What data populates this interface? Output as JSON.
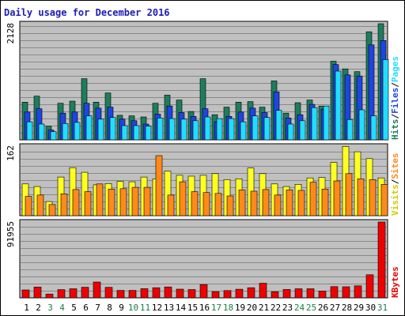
{
  "chart_data": {
    "type": "bar",
    "title": "Daily usage for December 2016",
    "categories": [
      "1",
      "2",
      "3",
      "4",
      "5",
      "6",
      "7",
      "8",
      "9",
      "10",
      "11",
      "12",
      "13",
      "14",
      "15",
      "16",
      "17",
      "18",
      "19",
      "20",
      "21",
      "22",
      "23",
      "24",
      "25",
      "26",
      "27",
      "28",
      "29",
      "30",
      "31"
    ],
    "weekend_days": [
      "3",
      "4",
      "10",
      "11",
      "17",
      "18",
      "24",
      "25",
      "31"
    ],
    "colors": {
      "background": "#c0c0c0",
      "gridline": "#8a8a8a",
      "title": "#1b1bb6",
      "weekday_label": "#000000",
      "weekend_label": "#1a7d4a",
      "hits": "#1d7d5d",
      "files": "#1f45e0",
      "pages": "#22ddff",
      "visits": "#ffff22",
      "sites": "#ff8a1a",
      "kbytes": "#ee0000"
    },
    "panels": [
      {
        "id": "hits-files-pages",
        "ymax_label": "2128",
        "ymax": 2128,
        "legend": [
          {
            "label": "Hits",
            "color": "#1d7d5d"
          },
          {
            "label": "/",
            "color": "#000000"
          },
          {
            "label": "Files",
            "color": "#1f45e0"
          },
          {
            "label": "/",
            "color": "#000000"
          },
          {
            "label": "Pages",
            "color": "#22ddff"
          }
        ],
        "series": [
          {
            "name": "Hits",
            "color": "#1d7d5d",
            "values": [
              690,
              800,
              250,
              670,
              710,
              1120,
              690,
              860,
              450,
              440,
              420,
              670,
              820,
              730,
              520,
              1120,
              460,
              600,
              690,
              700,
              600,
              1080,
              490,
              680,
              730,
              620,
              1440,
              1300,
              1250,
              1980,
              2128
            ]
          },
          {
            "name": "Files",
            "color": "#1f45e0",
            "values": [
              510,
              570,
              180,
              490,
              510,
              670,
              580,
              600,
              380,
              350,
              290,
              470,
              620,
              500,
              430,
              570,
              330,
              430,
              510,
              580,
              500,
              880,
              400,
              460,
              650,
              560,
              1380,
              1190,
              1170,
              1740,
              1820
            ]
          },
          {
            "name": "Pages",
            "color": "#22ddff",
            "values": [
              330,
              290,
              150,
              300,
              320,
              440,
              380,
              410,
              260,
              260,
              250,
              400,
              390,
              380,
              350,
              420,
              390,
              390,
              330,
              440,
              410,
              540,
              290,
              350,
              590,
              620,
              1260,
              370,
              550,
              440,
              1470
            ]
          }
        ]
      },
      {
        "id": "visits-sites",
        "ymax_label": "162",
        "ymax": 162,
        "legend": [
          {
            "label": "Visits",
            "color": "#cccc00"
          },
          {
            "label": "/",
            "color": "#000000"
          },
          {
            "label": "Sites",
            "color": "#ff8a1a"
          }
        ],
        "series": [
          {
            "name": "Visits",
            "color": "#ffff22",
            "values": [
              74,
              68,
              33,
              90,
              112,
              101,
              72,
              75,
              80,
              79,
              90,
              86,
              104,
              94,
              92,
              94,
              98,
              84,
              86,
              111,
              98,
              74,
              68,
              73,
              88,
              89,
              124,
              161,
              149,
              133,
              88
            ]
          },
          {
            "name": "Sites",
            "color": "#ff8a1a",
            "values": [
              45,
              48,
              26,
              51,
              61,
              56,
              74,
              62,
              63,
              66,
              66,
              140,
              48,
              79,
              56,
              54,
              52,
              46,
              60,
              57,
              61,
              48,
              60,
              59,
              78,
              62,
              81,
              98,
              86,
              84,
              73
            ]
          }
        ]
      },
      {
        "id": "kbytes",
        "ymax_label": "91955",
        "ymax": 91955,
        "legend": [
          {
            "label": "KBytes",
            "color": "#ee0000"
          }
        ],
        "series": [
          {
            "name": "KBytes",
            "color": "#ee0000",
            "values": [
              9600,
              13100,
              4600,
              10000,
              11000,
              12800,
              19200,
              12700,
              9000,
              9000,
              11100,
              12300,
              13200,
              10500,
              10100,
              16100,
              7500,
              8800,
              10400,
              12300,
              17700,
              7400,
              10200,
              11000,
              11000,
              8100,
              13600,
              13400,
              14600,
              28000,
              91955
            ]
          }
        ]
      }
    ]
  }
}
